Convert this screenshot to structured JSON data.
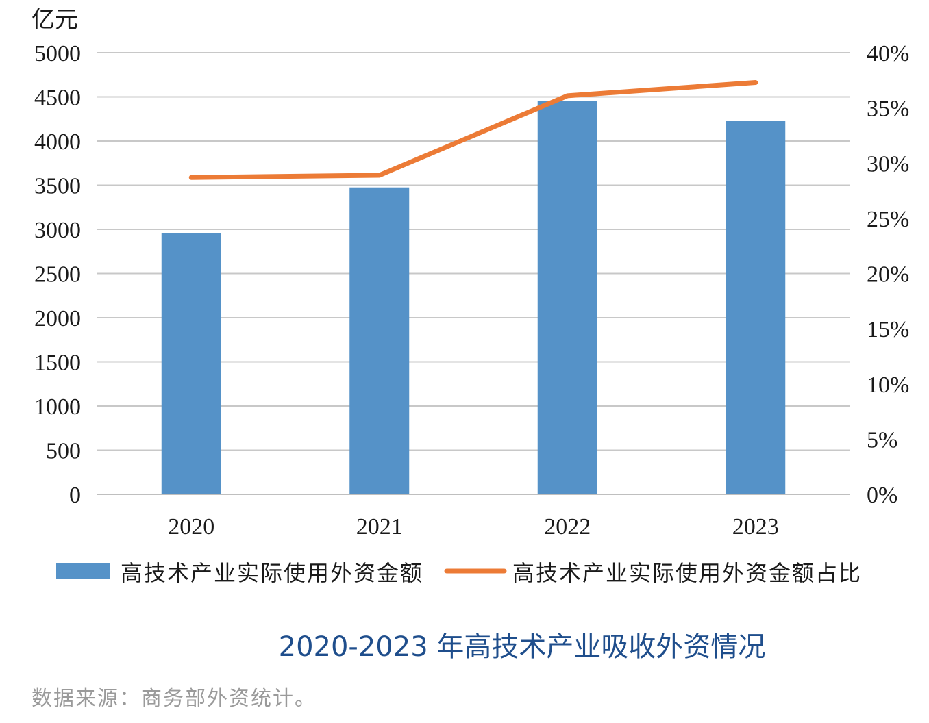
{
  "chart_data": {
    "type": "bar",
    "title": "2020-2023 年高技术产业吸收外资情况",
    "source": "数据来源：商务部外资统计。",
    "y_unit": "亿元",
    "categories": [
      "2020",
      "2021",
      "2022",
      "2023"
    ],
    "ylim": [
      0,
      5000
    ],
    "y_ticks": [
      "0",
      "500",
      "1000",
      "1500",
      "2000",
      "2500",
      "3000",
      "3500",
      "4000",
      "4500",
      "5000"
    ],
    "y2lim": [
      0,
      40
    ],
    "y2_ticks": [
      "0%",
      "5%",
      "10%",
      "15%",
      "20%",
      "25%",
      "30%",
      "35%",
      "40%"
    ],
    "grid": true,
    "legend_position": "bottom",
    "series": [
      {
        "name": "高技术产业实际使用外资金额",
        "type": "bar",
        "axis": "left",
        "color": "#5592c8",
        "values": [
          2960,
          3475,
          4450,
          4230
        ]
      },
      {
        "name": "高技术产业实际使用外资金额占比",
        "type": "line",
        "axis": "right",
        "color": "#ec7b36",
        "values": [
          28.7,
          28.9,
          36.1,
          37.3
        ]
      }
    ]
  }
}
